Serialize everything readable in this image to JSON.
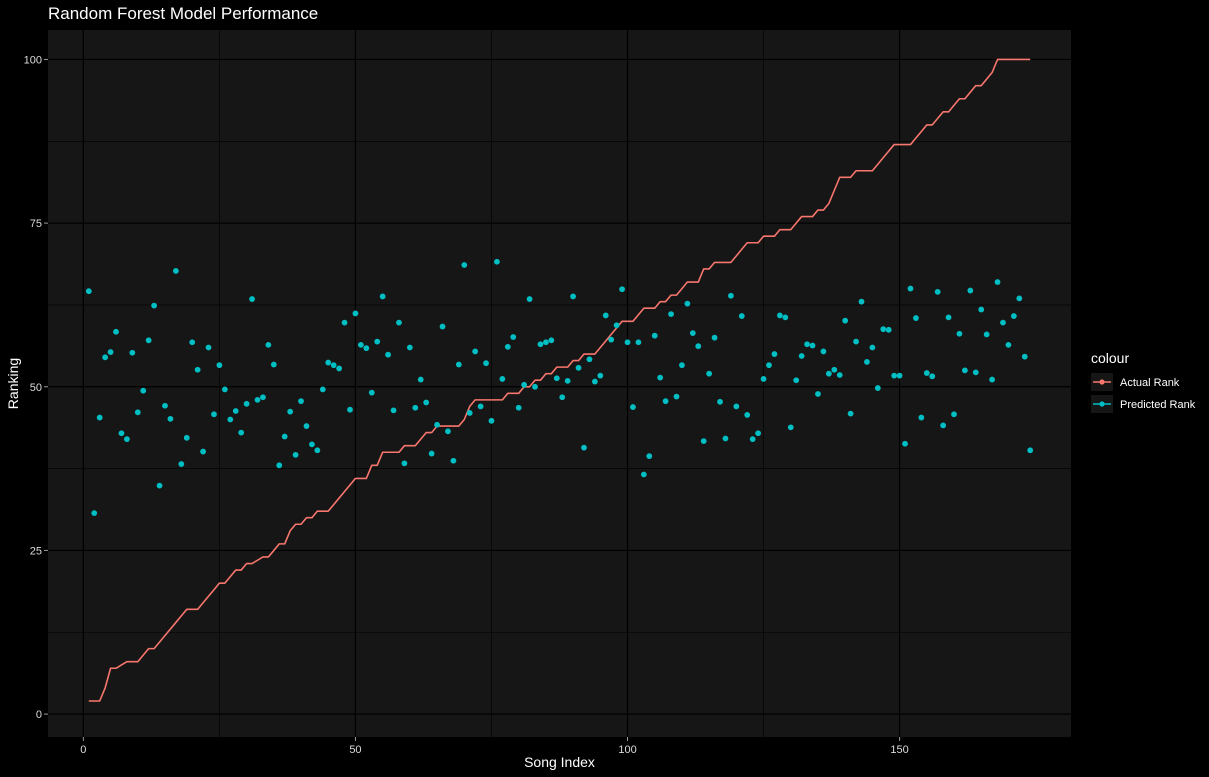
{
  "chart_data": {
    "type": "line+scatter",
    "title": "Random Forest Model Performance",
    "xlabel": "Song Index",
    "ylabel": "Ranking",
    "xlim": [
      -6.5,
      181.5
    ],
    "ylim": [
      -3.5,
      104.5
    ],
    "x_ticks": [
      0,
      50,
      100,
      150
    ],
    "y_ticks": [
      0,
      25,
      50,
      75,
      100
    ],
    "grid": true,
    "legend": {
      "title": "colour",
      "placement": "right",
      "entries": [
        "Actual Rank",
        "Predicted Rank"
      ]
    },
    "series": [
      {
        "name": "Actual Rank",
        "type": "line",
        "color": "#F8766D",
        "x": [
          1,
          2,
          3,
          4,
          5,
          6,
          7,
          8,
          9,
          10,
          11,
          12,
          13,
          14,
          15,
          16,
          17,
          18,
          19,
          20,
          21,
          22,
          23,
          24,
          25,
          26,
          27,
          28,
          29,
          30,
          31,
          32,
          33,
          34,
          35,
          36,
          37,
          38,
          39,
          40,
          41,
          42,
          43,
          44,
          45,
          46,
          47,
          48,
          49,
          50,
          51,
          52,
          53,
          54,
          55,
          56,
          57,
          58,
          59,
          60,
          61,
          62,
          63,
          64,
          65,
          66,
          67,
          68,
          69,
          70,
          71,
          72,
          73,
          74,
          75,
          76,
          77,
          78,
          79,
          80,
          81,
          82,
          83,
          84,
          85,
          86,
          87,
          88,
          89,
          90,
          91,
          92,
          93,
          94,
          95,
          96,
          97,
          98,
          99,
          100,
          101,
          102,
          103,
          104,
          105,
          106,
          107,
          108,
          109,
          110,
          111,
          112,
          113,
          114,
          115,
          116,
          117,
          118,
          119,
          120,
          121,
          122,
          123,
          124,
          125,
          126,
          127,
          128,
          129,
          130,
          131,
          132,
          133,
          134,
          135,
          136,
          137,
          138,
          139,
          140,
          141,
          142,
          143,
          144,
          145,
          146,
          147,
          148,
          149,
          150,
          151,
          152,
          153,
          154,
          155,
          156,
          157,
          158,
          159,
          160,
          161,
          162,
          163,
          164,
          165,
          166,
          167,
          168,
          169,
          170,
          171,
          172,
          173,
          174
        ],
        "y": [
          2,
          2,
          2,
          4,
          7,
          7,
          7.5,
          8,
          8,
          8,
          9,
          10,
          10,
          11,
          12,
          13,
          14,
          15,
          16,
          16,
          16,
          17,
          18,
          19,
          20,
          20,
          21,
          22,
          22,
          23,
          23,
          23.5,
          24,
          24,
          25,
          26,
          26,
          28,
          29,
          29,
          30,
          30,
          31,
          31,
          31,
          32,
          33,
          34,
          35,
          36,
          36,
          36,
          38,
          38,
          40,
          40,
          40,
          40,
          41,
          41,
          41,
          42,
          43,
          43,
          44,
          44,
          44,
          44,
          44,
          45,
          47,
          48,
          48,
          48,
          48,
          48,
          48,
          49,
          49,
          49,
          50,
          50,
          51,
          51,
          52,
          52,
          53,
          53,
          53,
          54,
          54,
          55,
          55,
          55,
          56,
          57,
          58,
          59,
          60,
          60,
          60,
          61,
          62,
          62,
          62,
          63,
          63,
          64,
          64,
          65,
          66,
          66,
          66,
          68,
          68,
          69,
          69,
          69,
          69,
          70,
          71,
          72,
          72,
          72,
          73,
          73,
          73,
          74,
          74,
          74,
          75,
          76,
          76,
          76,
          77,
          77,
          78,
          80,
          82,
          82,
          82,
          83,
          83,
          83,
          83,
          84,
          85,
          86,
          87,
          87,
          87,
          87,
          88,
          89,
          90,
          90,
          91,
          92,
          92,
          93,
          94,
          94,
          95,
          96,
          96,
          97,
          98,
          100,
          100,
          100,
          100,
          100,
          100,
          100
        ],
        "x_override_end": 174
      },
      {
        "name": "Predicted Rank",
        "type": "scatter",
        "color": "#00BFC4",
        "x": [
          1,
          2,
          3,
          4,
          5,
          6,
          7,
          8,
          9,
          10,
          11,
          12,
          13,
          14,
          15,
          16,
          17,
          18,
          19,
          20,
          21,
          22,
          23,
          24,
          25,
          26,
          27,
          28,
          29,
          30,
          31,
          32,
          33,
          34,
          35,
          36,
          37,
          38,
          39,
          40,
          41,
          42,
          43,
          44,
          45,
          46,
          47,
          48,
          49,
          50,
          51,
          52,
          53,
          54,
          55,
          56,
          57,
          58,
          59,
          60,
          61,
          62,
          63,
          64,
          65,
          66,
          67,
          68,
          69,
          70,
          71,
          72,
          73,
          74,
          75,
          76,
          77,
          78,
          79,
          80,
          81,
          82,
          83,
          84,
          85,
          86,
          87,
          88,
          89,
          90,
          91,
          92,
          93,
          94,
          95,
          96,
          97,
          98,
          99,
          100,
          101,
          102,
          103,
          104,
          105,
          106,
          107,
          108,
          109,
          110,
          111,
          112,
          113,
          114,
          115,
          116,
          117,
          118,
          119,
          120,
          121,
          122,
          123,
          124,
          125,
          126,
          127,
          128,
          129,
          130,
          131,
          132,
          133,
          134,
          135,
          136,
          137,
          138,
          139,
          140,
          141,
          142,
          143,
          144,
          145,
          146,
          147,
          148,
          149,
          150,
          151,
          152,
          153,
          154,
          155,
          156,
          157,
          158,
          159,
          160,
          161,
          162,
          163,
          164,
          165,
          166,
          167,
          168,
          169,
          170,
          171,
          172,
          173,
          174
        ],
        "y": [
          64.6,
          30.7,
          45.3,
          54.5,
          55.3,
          58.4,
          42.9,
          42.0,
          55.2,
          46.1,
          49.4,
          57.1,
          62.4,
          34.9,
          47.1,
          45.1,
          67.7,
          38.2,
          42.2,
          56.8,
          52.6,
          40.1,
          56.0,
          45.8,
          53.3,
          49.6,
          45.0,
          46.3,
          43.0,
          47.4,
          63.4,
          48.0,
          48.4,
          56.4,
          53.4,
          38.0,
          42.4,
          46.2,
          39.6,
          47.8,
          44.0,
          41.2,
          40.3,
          49.6,
          53.7,
          53.3,
          52.8,
          59.8,
          46.5,
          61.2,
          56.4,
          55.9,
          49.1,
          56.9,
          63.8,
          54.9,
          46.4,
          59.8,
          38.3,
          56.0,
          46.8,
          51.1,
          47.6,
          39.8,
          44.2,
          59.2,
          43.2,
          38.7,
          53.4,
          68.6,
          46.0,
          55.4,
          47.0,
          53.6,
          44.8,
          69.1,
          51.2,
          56.1,
          57.6,
          46.8,
          50.3,
          63.4,
          50.0,
          56.5,
          56.8,
          57.1,
          51.3,
          48.4,
          50.9,
          63.8,
          52.9,
          40.7,
          54.2,
          50.8,
          51.7,
          60.9,
          57.2,
          59.4,
          64.9,
          56.8,
          46.9,
          56.8,
          36.6,
          39.4,
          57.8,
          51.4,
          47.8,
          61.1,
          48.5,
          53.3,
          62.7,
          58.2,
          56.2,
          41.7,
          52.0,
          57.5,
          47.7,
          42.1,
          63.9,
          47.0,
          60.8,
          45.7,
          42.0,
          42.9,
          51.2,
          53.3,
          55.0,
          60.9,
          60.6,
          43.8,
          51.0,
          54.7,
          56.5,
          56.3,
          48.9,
          55.4,
          52.0,
          52.6,
          51.8,
          60.1,
          45.9,
          56.9,
          63.0,
          53.8,
          56.0,
          49.8,
          58.8,
          58.7,
          51.7,
          51.7,
          41.3,
          65.0,
          60.5,
          45.3,
          52.1,
          51.6,
          64.5,
          44.1,
          60.6,
          45.8,
          58.1,
          52.5,
          64.7,
          52.2,
          61.8,
          58.0,
          51.1,
          66.0,
          59.8,
          56.4,
          60.8,
          63.5,
          54.6,
          40.3
        ]
      }
    ]
  }
}
